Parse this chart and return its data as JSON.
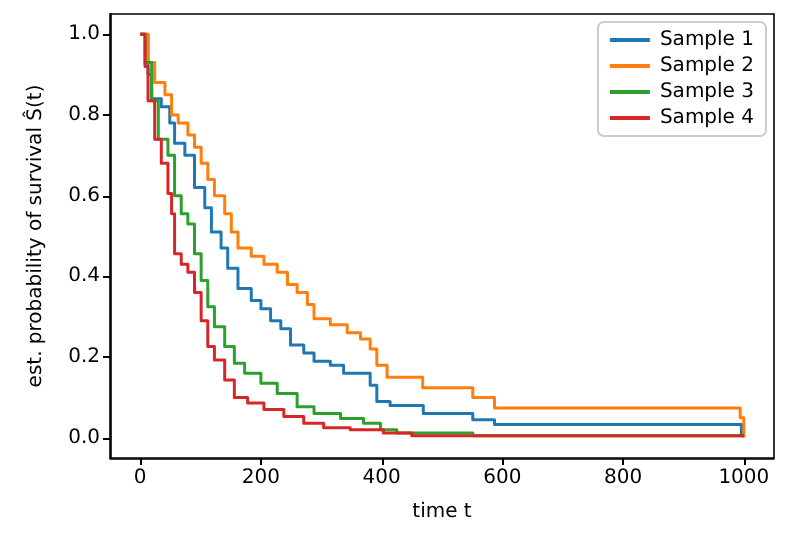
{
  "chart_data": {
    "type": "step",
    "xlabel": "time t",
    "ylabel": "est. probability of survival Ŝ(t)",
    "xlim": [
      -50,
      1050
    ],
    "ylim": [
      -0.05,
      1.05
    ],
    "xticks": [
      0,
      200,
      400,
      600,
      800,
      1000
    ],
    "yticks": [
      {
        "value": 0,
        "label": "0.0"
      },
      {
        "value": 0.2,
        "label": "0.2"
      },
      {
        "value": 0.4,
        "label": "0.4"
      },
      {
        "value": 0.6,
        "label": "0.6"
      },
      {
        "value": 0.8,
        "label": "0.8"
      },
      {
        "value": 1,
        "label": "1.0"
      }
    ],
    "grid": false,
    "legend": "top right",
    "marker": "none",
    "line_style": "solid",
    "series": [
      {
        "name": "Sample 1",
        "color": "#1f77b4",
        "x": [
          0,
          13,
          19,
          35,
          49,
          57,
          74,
          90,
          107,
          118,
          134,
          145,
          162,
          184,
          200,
          216,
          233,
          249,
          271,
          288,
          315,
          337,
          381,
          392,
          414,
          469,
          551,
          587,
          996,
          1000
        ],
        "values": [
          1,
          0.9,
          0.84,
          0.82,
          0.78,
          0.73,
          0.7,
          0.62,
          0.57,
          0.51,
          0.47,
          0.42,
          0.37,
          0.34,
          0.32,
          0.29,
          0.27,
          0.23,
          0.21,
          0.19,
          0.18,
          0.16,
          0.13,
          0.09,
          0.08,
          0.06,
          0.045,
          0.033,
          0.01,
          0.01
        ]
      },
      {
        "name": "Sample 2",
        "color": "#ff7f0e",
        "x": [
          0,
          13,
          24,
          41,
          52,
          63,
          79,
          90,
          101,
          112,
          123,
          140,
          151,
          162,
          184,
          205,
          227,
          244,
          260,
          277,
          288,
          315,
          343,
          365,
          381,
          392,
          409,
          468,
          551,
          587,
          994,
          1000
        ],
        "values": [
          1,
          0.93,
          0.88,
          0.85,
          0.8,
          0.78,
          0.75,
          0.72,
          0.68,
          0.64,
          0.6,
          0.555,
          0.51,
          0.47,
          0.45,
          0.43,
          0.41,
          0.38,
          0.36,
          0.33,
          0.295,
          0.28,
          0.26,
          0.245,
          0.22,
          0.18,
          0.15,
          0.124,
          0.1,
          0.074,
          0.05,
          0
        ]
      },
      {
        "name": "Sample 3",
        "color": "#2ca02c",
        "x": [
          0,
          8,
          19,
          30,
          46,
          57,
          68,
          79,
          90,
          101,
          112,
          123,
          140,
          156,
          173,
          200,
          227,
          260,
          288,
          332,
          370,
          398,
          425,
          551,
          1000
        ],
        "values": [
          1,
          0.93,
          0.835,
          0.74,
          0.7,
          0.6,
          0.555,
          0.53,
          0.456,
          0.39,
          0.325,
          0.275,
          0.226,
          0.185,
          0.16,
          0.135,
          0.11,
          0.077,
          0.06,
          0.048,
          0.036,
          0.02,
          0.012,
          0.005,
          0.005
        ]
      },
      {
        "name": "Sample 4",
        "color": "#d62728",
        "x": [
          0,
          8,
          13,
          24,
          35,
          46,
          52,
          57,
          68,
          79,
          90,
          101,
          112,
          123,
          140,
          156,
          178,
          205,
          238,
          271,
          304,
          348,
          403,
          450,
          1000
        ],
        "values": [
          1,
          0.92,
          0.835,
          0.74,
          0.68,
          0.605,
          0.555,
          0.456,
          0.43,
          0.41,
          0.36,
          0.29,
          0.226,
          0.193,
          0.143,
          0.1,
          0.086,
          0.07,
          0.053,
          0.036,
          0.025,
          0.02,
          0.012,
          0.005,
          0.005
        ]
      }
    ]
  }
}
